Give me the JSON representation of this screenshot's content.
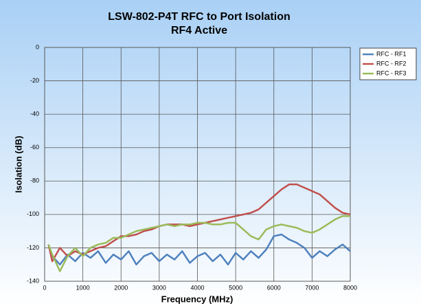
{
  "chart_data": {
    "type": "line",
    "title": "LSW-802-P4T RFC to Port Isolation",
    "subtitle": "RF4 Active",
    "x_label": "Frequency (MHz)",
    "y_label": "Isolation (dB)",
    "x": [
      100,
      200,
      400,
      600,
      800,
      1000,
      1200,
      1400,
      1600,
      1800,
      2000,
      2200,
      2400,
      2600,
      2800,
      3000,
      3200,
      3400,
      3600,
      3800,
      4000,
      4200,
      4400,
      4600,
      4800,
      5000,
      5200,
      5400,
      5600,
      5800,
      6000,
      6200,
      6400,
      6600,
      6800,
      7000,
      7200,
      7400,
      7600,
      7800,
      8000
    ],
    "series": [
      {
        "name": "RFC - RF1",
        "color": "#4f81bd",
        "values": [
          -118,
          -125,
          -130,
          -124,
          -128,
          -123,
          -126,
          -122,
          -129,
          -124,
          -127,
          -122,
          -130,
          -125,
          -123,
          -128,
          -124,
          -127,
          -122,
          -129,
          -125,
          -123,
          -128,
          -124,
          -130,
          -123,
          -127,
          -122,
          -126,
          -121,
          -113,
          -112,
          -115,
          -117,
          -120,
          -126,
          -122,
          -125,
          -121,
          -118,
          -122
        ]
      },
      {
        "name": "RFC - RF2",
        "color": "#c0504d",
        "values": [
          -118,
          -128,
          -120,
          -125,
          -122,
          -124,
          -122,
          -120,
          -119,
          -116,
          -113,
          -113,
          -112,
          -110,
          -109,
          -107,
          -106,
          -106,
          -106,
          -107,
          -106,
          -105,
          -104,
          -103,
          -102,
          -101,
          -100,
          -99,
          -97,
          -93,
          -89,
          -85,
          -82,
          -82,
          -84,
          -86,
          -88,
          -92,
          -96,
          -99,
          -100
        ]
      },
      {
        "name": "RFC - RF3",
        "color": "#9bbb59",
        "values": [
          -118,
          -124,
          -134,
          -125,
          -120,
          -125,
          -120,
          -118,
          -117,
          -114,
          -114,
          -112,
          -110,
          -109,
          -108,
          -107,
          -106,
          -107,
          -106,
          -106,
          -105,
          -105,
          -106,
          -106,
          -105,
          -105,
          -109,
          -113,
          -115,
          -109,
          -107,
          -106,
          -107,
          -108,
          -110,
          -111,
          -109,
          -106,
          -103,
          -101,
          -101
        ]
      }
    ],
    "xlim": [
      0,
      8000
    ],
    "xticks": [
      0,
      1000,
      2000,
      3000,
      4000,
      5000,
      6000,
      7000,
      8000
    ],
    "ylim": [
      -140,
      0
    ],
    "yticks": [
      0,
      -20,
      -40,
      -60,
      -80,
      -100,
      -120,
      -140
    ],
    "grid": true,
    "legend": "right"
  }
}
